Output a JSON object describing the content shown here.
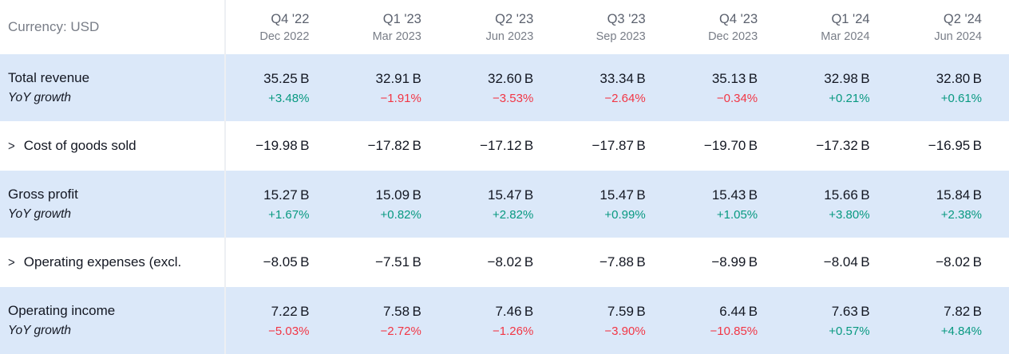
{
  "currency_label": "Currency: USD",
  "icons": {
    "expand_chevron": ">"
  },
  "colors": {
    "positive": "#089981",
    "negative": "#f23645",
    "row_highlight": "#dbe8f9",
    "divider": "#edeff3",
    "muted_text": "#787d87",
    "header_quarter_text": "#5b616e",
    "label_text": "#131722"
  },
  "columns": [
    {
      "quarter": "Q4 '22",
      "period": "Dec 2022"
    },
    {
      "quarter": "Q1 '23",
      "period": "Mar 2023"
    },
    {
      "quarter": "Q2 '23",
      "period": "Jun 2023"
    },
    {
      "quarter": "Q3 '23",
      "period": "Sep 2023"
    },
    {
      "quarter": "Q4 '23",
      "period": "Dec 2023"
    },
    {
      "quarter": "Q1 '24",
      "period": "Mar 2024"
    },
    {
      "quarter": "Q2 '24",
      "period": "Jun 2024"
    }
  ],
  "rows": [
    {
      "id": "total-revenue",
      "label": "Total revenue",
      "sub_label": "YoY growth",
      "expandable": false,
      "highlighted": true,
      "values": [
        "35.25 B",
        "32.91 B",
        "32.60 B",
        "33.34 B",
        "35.13 B",
        "32.98 B",
        "32.80 B"
      ],
      "yoy": [
        "+3.48%",
        "−1.91%",
        "−3.53%",
        "−2.64%",
        "−0.34%",
        "+0.21%",
        "+0.61%"
      ]
    },
    {
      "id": "cost-of-goods-sold",
      "label": "Cost of goods sold",
      "expandable": true,
      "highlighted": false,
      "values": [
        "−19.98 B",
        "−17.82 B",
        "−17.12 B",
        "−17.87 B",
        "−19.70 B",
        "−17.32 B",
        "−16.95 B"
      ]
    },
    {
      "id": "gross-profit",
      "label": "Gross profit",
      "sub_label": "YoY growth",
      "expandable": false,
      "highlighted": true,
      "values": [
        "15.27 B",
        "15.09 B",
        "15.47 B",
        "15.47 B",
        "15.43 B",
        "15.66 B",
        "15.84 B"
      ],
      "yoy": [
        "+1.67%",
        "+0.82%",
        "+2.82%",
        "+0.99%",
        "+1.05%",
        "+3.80%",
        "+2.38%"
      ]
    },
    {
      "id": "operating-expenses",
      "label": "Operating expenses (excl.",
      "expandable": true,
      "highlighted": false,
      "values": [
        "−8.05 B",
        "−7.51 B",
        "−8.02 B",
        "−7.88 B",
        "−8.99 B",
        "−8.04 B",
        "−8.02 B"
      ]
    },
    {
      "id": "operating-income",
      "label": "Operating income",
      "sub_label": "YoY growth",
      "expandable": false,
      "highlighted": true,
      "values": [
        "7.22 B",
        "7.58 B",
        "7.46 B",
        "7.59 B",
        "6.44 B",
        "7.63 B",
        "7.82 B"
      ],
      "yoy": [
        "−5.03%",
        "−2.72%",
        "−1.26%",
        "−3.90%",
        "−10.85%",
        "+0.57%",
        "+4.84%"
      ]
    }
  ]
}
